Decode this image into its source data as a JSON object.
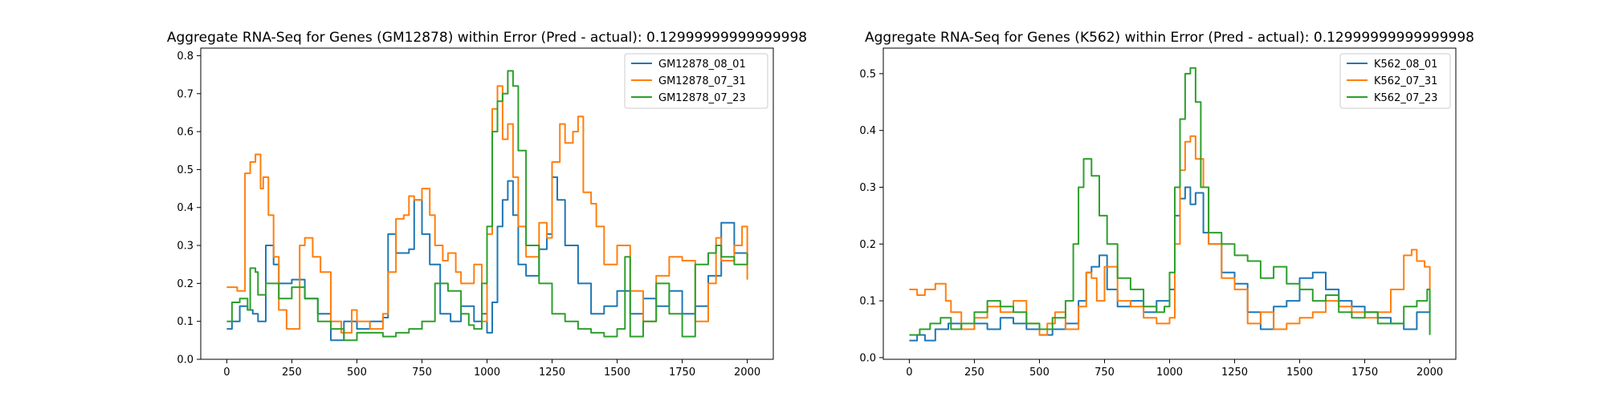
{
  "chart_data": [
    {
      "type": "line",
      "title": "Aggregate RNA-Seq for Genes (GM12878) within Error (Pred - actual): 0.12999999999999998",
      "xlabel": "",
      "ylabel": "",
      "xlim": [
        -100,
        2100
      ],
      "ylim": [
        0,
        0.82
      ],
      "xticks": [
        0,
        250,
        500,
        750,
        1000,
        1250,
        1500,
        1750,
        2000
      ],
      "yticks": [
        0.0,
        0.1,
        0.2,
        0.3,
        0.4,
        0.5,
        0.6,
        0.7,
        0.8
      ],
      "ytick_labels": [
        "0.0",
        "0.1",
        "0.2",
        "0.3",
        "0.4",
        "0.5",
        "0.6",
        "0.7",
        "0.8"
      ],
      "legend_position": "top-right",
      "grid": false,
      "series": [
        {
          "name": "GM12878_08_01",
          "color": "#1f77b4",
          "x": [
            0,
            20,
            50,
            80,
            100,
            120,
            150,
            180,
            200,
            250,
            300,
            350,
            400,
            450,
            500,
            550,
            600,
            620,
            650,
            700,
            720,
            750,
            780,
            820,
            860,
            900,
            950,
            980,
            1000,
            1020,
            1040,
            1060,
            1080,
            1100,
            1120,
            1150,
            1200,
            1230,
            1250,
            1270,
            1300,
            1350,
            1400,
            1450,
            1500,
            1550,
            1600,
            1650,
            1700,
            1750,
            1800,
            1850,
            1900,
            1950,
            2000
          ],
          "y": [
            0.08,
            0.1,
            0.14,
            0.13,
            0.12,
            0.1,
            0.3,
            0.25,
            0.2,
            0.21,
            0.16,
            0.12,
            0.05,
            0.1,
            0.08,
            0.1,
            0.11,
            0.33,
            0.28,
            0.29,
            0.42,
            0.33,
            0.25,
            0.12,
            0.1,
            0.14,
            0.1,
            0.12,
            0.07,
            0.15,
            0.35,
            0.42,
            0.47,
            0.38,
            0.25,
            0.22,
            0.29,
            0.33,
            0.48,
            0.42,
            0.3,
            0.2,
            0.12,
            0.14,
            0.18,
            0.12,
            0.16,
            0.14,
            0.18,
            0.12,
            0.14,
            0.22,
            0.36,
            0.28,
            0.27
          ]
        },
        {
          "name": "GM12878_07_31",
          "color": "#ff7f0e",
          "x": [
            0,
            20,
            40,
            60,
            70,
            90,
            110,
            130,
            140,
            160,
            180,
            200,
            230,
            250,
            280,
            300,
            330,
            360,
            400,
            440,
            480,
            500,
            550,
            600,
            620,
            650,
            680,
            700,
            720,
            750,
            780,
            800,
            830,
            850,
            880,
            900,
            950,
            980,
            1000,
            1020,
            1040,
            1060,
            1080,
            1100,
            1120,
            1150,
            1200,
            1230,
            1250,
            1280,
            1300,
            1330,
            1350,
            1370,
            1400,
            1420,
            1450,
            1500,
            1550,
            1600,
            1650,
            1700,
            1750,
            1800,
            1850,
            1880,
            1900,
            1950,
            1980,
            2000
          ],
          "y": [
            0.19,
            0.19,
            0.18,
            0.18,
            0.49,
            0.52,
            0.54,
            0.45,
            0.48,
            0.38,
            0.27,
            0.13,
            0.08,
            0.08,
            0.3,
            0.32,
            0.27,
            0.23,
            0.1,
            0.07,
            0.13,
            0.1,
            0.08,
            0.12,
            0.23,
            0.37,
            0.38,
            0.43,
            0.42,
            0.45,
            0.38,
            0.3,
            0.26,
            0.28,
            0.23,
            0.2,
            0.25,
            0.1,
            0.33,
            0.66,
            0.72,
            0.58,
            0.62,
            0.48,
            0.35,
            0.27,
            0.36,
            0.32,
            0.52,
            0.62,
            0.57,
            0.6,
            0.64,
            0.44,
            0.41,
            0.35,
            0.25,
            0.3,
            0.18,
            0.1,
            0.22,
            0.27,
            0.26,
            0.1,
            0.2,
            0.32,
            0.26,
            0.3,
            0.35,
            0.21
          ]
        },
        {
          "name": "GM12878_07_23",
          "color": "#2ca02c",
          "x": [
            0,
            20,
            50,
            80,
            90,
            110,
            120,
            150,
            200,
            250,
            300,
            350,
            400,
            450,
            500,
            550,
            600,
            650,
            700,
            750,
            800,
            850,
            900,
            930,
            950,
            980,
            1000,
            1020,
            1040,
            1060,
            1080,
            1100,
            1120,
            1150,
            1200,
            1250,
            1300,
            1350,
            1400,
            1450,
            1500,
            1530,
            1550,
            1600,
            1650,
            1700,
            1750,
            1800,
            1850,
            1880,
            1900,
            1950,
            2000
          ],
          "y": [
            0.1,
            0.15,
            0.16,
            0.13,
            0.24,
            0.23,
            0.17,
            0.2,
            0.16,
            0.19,
            0.16,
            0.1,
            0.08,
            0.05,
            0.07,
            0.07,
            0.06,
            0.07,
            0.08,
            0.1,
            0.2,
            0.18,
            0.12,
            0.09,
            0.08,
            0.2,
            0.35,
            0.6,
            0.68,
            0.7,
            0.76,
            0.72,
            0.55,
            0.3,
            0.2,
            0.12,
            0.1,
            0.08,
            0.07,
            0.06,
            0.08,
            0.27,
            0.06,
            0.1,
            0.2,
            0.12,
            0.06,
            0.25,
            0.28,
            0.3,
            0.27,
            0.25,
            0.28
          ]
        }
      ]
    },
    {
      "type": "line",
      "title": "Aggregate RNA-Seq for Genes (K562) within Error (Pred - actual): 0.12999999999999998",
      "xlabel": "",
      "ylabel": "",
      "xlim": [
        -100,
        2100
      ],
      "ylim": [
        -0.003,
        0.545
      ],
      "xticks": [
        0,
        250,
        500,
        750,
        1000,
        1250,
        1500,
        1750,
        2000
      ],
      "yticks": [
        0.0,
        0.1,
        0.2,
        0.3,
        0.4,
        0.5
      ],
      "ytick_labels": [
        "0.0",
        "0.1",
        "0.2",
        "0.3",
        "0.4",
        "0.5"
      ],
      "legend_position": "top-right",
      "grid": false,
      "series": [
        {
          "name": "K562_08_01",
          "color": "#1f77b4",
          "x": [
            0,
            30,
            60,
            100,
            150,
            200,
            250,
            300,
            350,
            400,
            450,
            500,
            550,
            600,
            650,
            680,
            700,
            730,
            760,
            800,
            850,
            900,
            950,
            1000,
            1020,
            1040,
            1060,
            1080,
            1100,
            1130,
            1150,
            1200,
            1250,
            1300,
            1350,
            1400,
            1450,
            1500,
            1550,
            1600,
            1650,
            1700,
            1750,
            1800,
            1850,
            1900,
            1950,
            2000
          ],
          "y": [
            0.03,
            0.04,
            0.03,
            0.05,
            0.06,
            0.05,
            0.06,
            0.05,
            0.07,
            0.06,
            0.05,
            0.04,
            0.05,
            0.06,
            0.1,
            0.15,
            0.16,
            0.18,
            0.12,
            0.09,
            0.1,
            0.08,
            0.1,
            0.12,
            0.25,
            0.28,
            0.3,
            0.27,
            0.29,
            0.22,
            0.2,
            0.15,
            0.13,
            0.08,
            0.05,
            0.09,
            0.1,
            0.14,
            0.15,
            0.12,
            0.1,
            0.09,
            0.08,
            0.07,
            0.06,
            0.05,
            0.08,
            0.1
          ]
        },
        {
          "name": "K562_07_31",
          "color": "#ff7f0e",
          "x": [
            0,
            30,
            60,
            100,
            140,
            160,
            200,
            250,
            300,
            350,
            400,
            450,
            500,
            530,
            560,
            600,
            650,
            680,
            700,
            720,
            750,
            800,
            850,
            900,
            950,
            1000,
            1020,
            1040,
            1060,
            1080,
            1100,
            1130,
            1150,
            1200,
            1250,
            1300,
            1350,
            1400,
            1450,
            1500,
            1550,
            1600,
            1650,
            1700,
            1750,
            1800,
            1850,
            1900,
            1930,
            1950,
            1980,
            2000
          ],
          "y": [
            0.12,
            0.11,
            0.12,
            0.13,
            0.1,
            0.08,
            0.05,
            0.07,
            0.09,
            0.08,
            0.1,
            0.06,
            0.04,
            0.06,
            0.08,
            0.05,
            0.09,
            0.15,
            0.14,
            0.1,
            0.16,
            0.1,
            0.09,
            0.07,
            0.06,
            0.07,
            0.2,
            0.33,
            0.38,
            0.39,
            0.35,
            0.3,
            0.2,
            0.14,
            0.12,
            0.06,
            0.08,
            0.05,
            0.06,
            0.07,
            0.08,
            0.1,
            0.09,
            0.08,
            0.07,
            0.08,
            0.12,
            0.18,
            0.19,
            0.17,
            0.16,
            0.12
          ]
        },
        {
          "name": "K562_07_23",
          "color": "#2ca02c",
          "x": [
            0,
            40,
            80,
            120,
            160,
            200,
            250,
            300,
            350,
            400,
            450,
            500,
            550,
            600,
            630,
            650,
            670,
            700,
            730,
            760,
            800,
            850,
            900,
            950,
            980,
            1000,
            1020,
            1040,
            1060,
            1080,
            1100,
            1120,
            1150,
            1200,
            1250,
            1300,
            1350,
            1400,
            1450,
            1500,
            1550,
            1600,
            1650,
            1700,
            1750,
            1800,
            1850,
            1900,
            1950,
            1990,
            2000
          ],
          "y": [
            0.04,
            0.05,
            0.06,
            0.07,
            0.05,
            0.06,
            0.08,
            0.1,
            0.09,
            0.08,
            0.06,
            0.05,
            0.07,
            0.1,
            0.2,
            0.3,
            0.35,
            0.32,
            0.25,
            0.2,
            0.14,
            0.12,
            0.09,
            0.08,
            0.09,
            0.15,
            0.3,
            0.42,
            0.5,
            0.51,
            0.45,
            0.3,
            0.22,
            0.2,
            0.18,
            0.17,
            0.14,
            0.16,
            0.13,
            0.12,
            0.1,
            0.11,
            0.08,
            0.07,
            0.08,
            0.06,
            0.06,
            0.09,
            0.1,
            0.12,
            0.04
          ]
        }
      ]
    }
  ]
}
